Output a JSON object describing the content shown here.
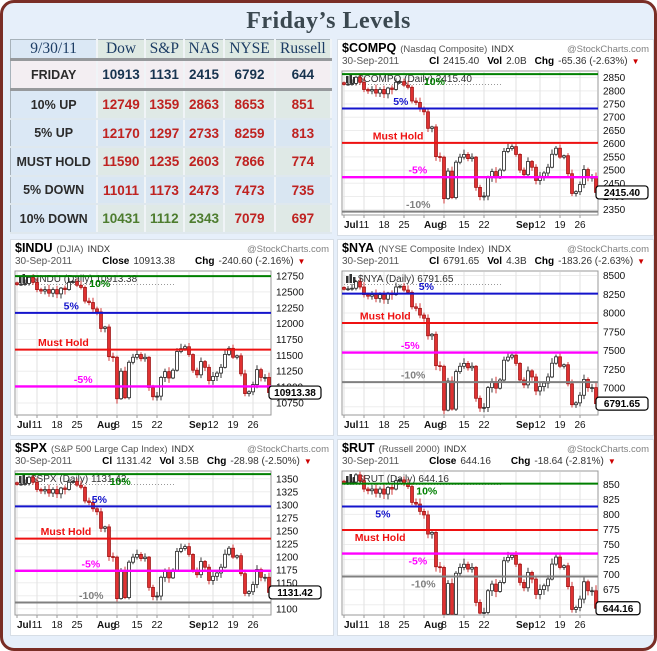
{
  "page": {
    "title": "Friday’s Levels"
  },
  "table": {
    "type": "table",
    "date": "9/30/11",
    "columns": [
      "Dow",
      "S&P",
      "NAS",
      "NYSE",
      "Russell"
    ],
    "rows": [
      {
        "label": "FRIDAY",
        "values": [
          "10913",
          "1131",
          "2415",
          "6792",
          "644"
        ],
        "colors": [
          "#17334f",
          "#17334f",
          "#17334f",
          "#17334f",
          "#17334f"
        ]
      },
      {
        "label": "10% UP",
        "values": [
          "12749",
          "1359",
          "2863",
          "8653",
          "851"
        ],
        "colors": [
          "#bf2220",
          "#bf2220",
          "#bf2220",
          "#bf2220",
          "#bf2220"
        ]
      },
      {
        "label": "5% UP",
        "values": [
          "12170",
          "1297",
          "2733",
          "8259",
          "813"
        ],
        "colors": [
          "#bf2220",
          "#bf2220",
          "#bf2220",
          "#bf2220",
          "#bf2220"
        ]
      },
      {
        "label": "MUST HOLD",
        "values": [
          "11590",
          "1235",
          "2603",
          "7866",
          "774"
        ],
        "colors": [
          "#bf2220",
          "#bf2220",
          "#bf2220",
          "#bf2220",
          "#bf2220"
        ]
      },
      {
        "label": "5% DOWN",
        "values": [
          "11011",
          "1173",
          "2473",
          "7473",
          "735"
        ],
        "colors": [
          "#bf2220",
          "#bf2220",
          "#bf2220",
          "#bf2220",
          "#bf2220"
        ]
      },
      {
        "label": "10% DOWN",
        "values": [
          "10431",
          "1112",
          "2343",
          "7079",
          "697"
        ],
        "colors": [
          "#4d7c2e",
          "#4d7c2e",
          "#4d7c2e",
          "#bf2220",
          "#bf2220"
        ]
      }
    ]
  },
  "shared_pattern": {
    "comment": "normalized daily closes Jul 1 - Sep 30 2011 (0=plot bottom, 1=plot top); per-chart affine shape maps to prices",
    "closes": [
      0.905,
      0.908,
      0.912,
      0.955,
      0.92,
      0.87,
      0.86,
      0.87,
      0.845,
      0.87,
      0.84,
      0.88,
      0.87,
      0.92,
      0.925,
      0.9,
      0.885,
      0.79,
      0.78,
      0.736,
      0.715,
      0.6,
      0.61,
      0.404,
      0.4,
      0.112,
      0.303,
      0.119,
      0.365,
      0.4,
      0.419,
      0.39,
      0.4,
      0.19,
      0.126,
      0.13,
      0.26,
      0.3,
      0.256,
      0.31,
      0.44,
      0.46,
      0.473,
      0.419,
      0.31,
      0.278,
      0.37,
      0.33,
      0.238,
      0.267,
      0.29,
      0.33,
      0.42,
      0.462,
      0.4,
      0.41,
      0.285,
      0.148,
      0.16,
      0.21,
      0.314,
      0.26,
      0.26,
      0.155
    ],
    "x_ticks": [
      {
        "label": "Jul",
        "day": 0,
        "bold": true
      },
      {
        "label": "11",
        "day": 5,
        "bold": false
      },
      {
        "label": "18",
        "day": 10,
        "bold": false
      },
      {
        "label": "25",
        "day": 15,
        "bold": false
      },
      {
        "label": "Aug",
        "day": 20,
        "bold": true
      },
      {
        "label": "8",
        "day": 25,
        "bold": false
      },
      {
        "label": "15",
        "day": 30,
        "bold": false
      },
      {
        "label": "22",
        "day": 35,
        "bold": false
      },
      {
        "label": "Sep",
        "day": 43,
        "bold": true
      },
      {
        "label": "12",
        "day": 49,
        "bold": false
      },
      {
        "label": "19",
        "day": 54,
        "bold": false
      },
      {
        "label": "26",
        "day": 59,
        "bold": false
      }
    ]
  },
  "chart_data": [
    {
      "type": "candlestick",
      "id": "compq",
      "symbol": "$COMPQ",
      "description": "(Nasdaq Composite)",
      "exchange": "INDX",
      "site": "@StockCharts.com",
      "date": "30-Sep-2011",
      "close_label": "Cl",
      "close": "2415.40",
      "vol_label": "Vol",
      "vol": "2.0B",
      "chg_label": "Chg",
      "change": "-65.36 (-2.63%)",
      "watermark": "$COMPQ (Daily) 2415.40",
      "last_price_label": "2415.40",
      "plot": {
        "ymin": 2330,
        "ymax": 2875,
        "last_close": 2415.4,
        "yticks": [
          2850,
          2800,
          2750,
          2700,
          2650,
          2600,
          2550,
          2500,
          2450,
          2400,
          2350
        ],
        "levels": [
          {
            "value": 2863,
            "color": "#008000",
            "label": "10%",
            "label_x": 0.32,
            "side": "below"
          },
          {
            "value": 2733,
            "color": "#1414cc",
            "label": "5%",
            "label_x": 0.2,
            "side": "above"
          },
          {
            "value": 2603,
            "color": "#ee1111",
            "label": "Must Hold",
            "label_x": 0.12,
            "side": "above"
          },
          {
            "value": 2473,
            "color": "#ff00ff",
            "label": "-5%",
            "label_x": 0.26,
            "side": "above"
          },
          {
            "value": 2343,
            "color": "#808080",
            "label": "-10%",
            "label_x": 0.25,
            "side": "above"
          }
        ],
        "shape": {
          "a": 1,
          "b": 0.0017
        }
      }
    },
    {
      "type": "candlestick",
      "id": "indu",
      "symbol": "$INDU",
      "description": "(DJIA)",
      "exchange": "INDX",
      "site": "@StockCharts.com",
      "date": "30-Sep-2011",
      "close_label": "Close",
      "close": "10913.38",
      "vol_label": "",
      "vol": "",
      "chg_label": "Chg",
      "change": "-240.60 (-2.16%)",
      "watermark": "$INDU (Daily) 10913.38",
      "last_price_label": "10913.38",
      "plot": {
        "ymin": 10560,
        "ymax": 12830,
        "last_close": 10913.38,
        "yticks": [
          12750,
          12500,
          12250,
          12000,
          11750,
          11500,
          11250,
          11000,
          10750
        ],
        "levels": [
          {
            "value": 12749,
            "color": "#008000",
            "label": "10%",
            "label_x": 0.29,
            "side": "below"
          },
          {
            "value": 12170,
            "color": "#1414cc",
            "label": "5%",
            "label_x": 0.19,
            "side": "above"
          },
          {
            "value": 11590,
            "color": "#ee1111",
            "label": "Must Hold",
            "label_x": 0.09,
            "side": "above"
          },
          {
            "value": 11011,
            "color": "#ff00ff",
            "label": "-5%",
            "label_x": 0.23,
            "side": "above"
          }
        ],
        "shape": {
          "a": 1,
          "b": 0.001
        }
      }
    },
    {
      "type": "candlestick",
      "id": "nya",
      "symbol": "$NYA",
      "description": "(NYSE Composite Index)",
      "exchange": "INDX",
      "site": "@StockCharts.com",
      "date": "30-Sep-2011",
      "close_label": "Cl",
      "close": "6791.65",
      "vol_label": "Vol",
      "vol": "4.3B",
      "chg_label": "Chg",
      "change": "-183.26 (-2.63%)",
      "watermark": "$NYA (Daily) 6791.65",
      "last_price_label": "6791.65",
      "plot": {
        "ymin": 6640,
        "ymax": 8560,
        "last_close": 6791.65,
        "yticks": [
          8500,
          8250,
          8000,
          7750,
          7500,
          7250,
          7000,
          6750
        ],
        "levels": [
          {
            "value": 8259,
            "color": "#1414cc",
            "label": "5%",
            "label_x": 0.3,
            "side": "above"
          },
          {
            "value": 7866,
            "color": "#ee1111",
            "label": "Must Hold",
            "label_x": 0.07,
            "side": "above"
          },
          {
            "value": 7473,
            "color": "#ff00ff",
            "label": "-5%",
            "label_x": 0.23,
            "side": "above"
          },
          {
            "value": 7079,
            "color": "#808080",
            "label": "-10%",
            "label_x": 0.23,
            "side": "above"
          }
        ],
        "shape": {
          "a": 1.0586,
          "b": -0.0851
        }
      }
    },
    {
      "type": "candlestick",
      "id": "spx",
      "symbol": "$SPX",
      "description": "(S&P 500 Large Cap Index)",
      "exchange": "INDX",
      "site": "@StockCharts.com",
      "date": "30-Sep-2011",
      "close_label": "Cl",
      "close": "1131.42",
      "vol_label": "Vol",
      "vol": "3.5B",
      "chg_label": "Chg",
      "change": "-28.98 (-2.50%)",
      "watermark": "$SPX (Daily) 1131.42",
      "last_price_label": "1131.42",
      "plot": {
        "ymin": 1088,
        "ymax": 1365,
        "last_close": 1131.42,
        "yticks": [
          1350,
          1325,
          1300,
          1275,
          1250,
          1225,
          1200,
          1175,
          1150,
          1125,
          1100
        ],
        "levels": [
          {
            "value": 1359,
            "color": "#008000",
            "label": "10%",
            "label_x": 0.37,
            "side": "below"
          },
          {
            "value": 1297,
            "color": "#1414cc",
            "label": "5%",
            "label_x": 0.3,
            "side": "above"
          },
          {
            "value": 1235,
            "color": "#ee1111",
            "label": "Must Hold",
            "label_x": 0.1,
            "side": "above"
          },
          {
            "value": 1173,
            "color": "#ff00ff",
            "label": "-5%",
            "label_x": 0.26,
            "side": "above"
          },
          {
            "value": 1112,
            "color": "#808080",
            "label": "-10%",
            "label_x": 0.25,
            "side": "above"
          }
        ],
        "shape": {
          "a": 1,
          "b": 0.0018
        }
      }
    },
    {
      "type": "candlestick",
      "id": "rut",
      "symbol": "$RUT",
      "description": "(Russell 2000)",
      "exchange": "INDX",
      "site": "@StockCharts.com",
      "date": "30-Sep-2011",
      "close_label": "Close",
      "close": "644.16",
      "vol_label": "",
      "vol": "",
      "chg_label": "Chg",
      "change": "-18.64 (-2.81%)",
      "watermark": "$RUT (Daily) 644.16",
      "last_price_label": "644.16",
      "plot": {
        "ymin": 633,
        "ymax": 872,
        "last_close": 644.16,
        "yticks": [
          850,
          825,
          800,
          775,
          750,
          725,
          700,
          675,
          650
        ],
        "levels": [
          {
            "value": 851,
            "color": "#008000",
            "label": "10%",
            "label_x": 0.29,
            "side": "below"
          },
          {
            "value": 813,
            "color": "#1414cc",
            "label": "5%",
            "label_x": 0.13,
            "side": "below"
          },
          {
            "value": 774,
            "color": "#ee1111",
            "label": "Must Hold",
            "label_x": 0.05,
            "side": "below"
          },
          {
            "value": 735,
            "color": "#ff00ff",
            "label": "-5%",
            "label_x": 0.26,
            "side": "below"
          },
          {
            "value": 697,
            "color": "#808080",
            "label": "-10%",
            "label_x": 0.27,
            "side": "below"
          }
        ],
        "shape": {
          "a": 1.158,
          "b": -0.1328
        }
      }
    }
  ]
}
